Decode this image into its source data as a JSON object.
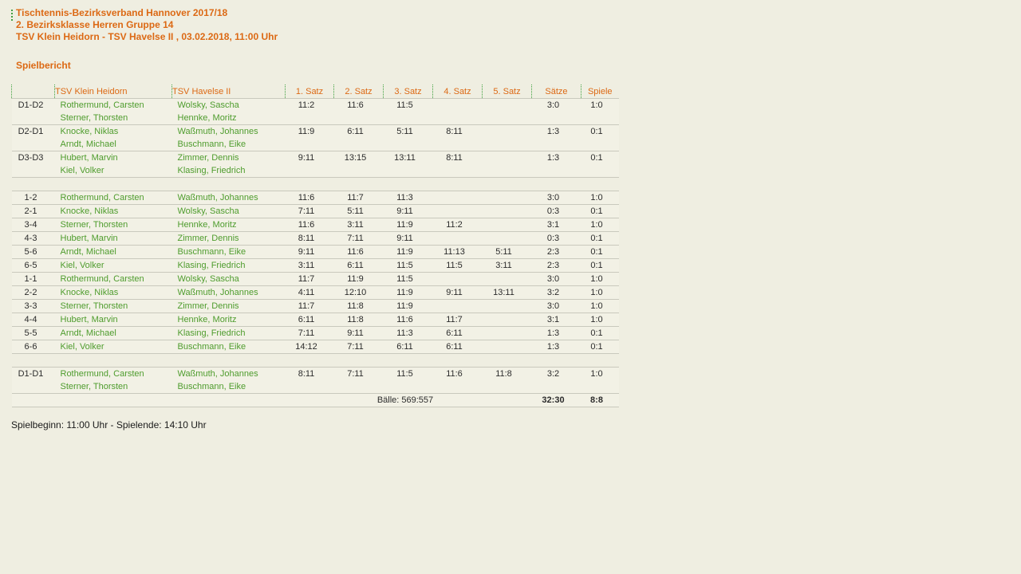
{
  "header": {
    "line1": "Tischtennis-Bezirksverband Hannover 2017/18",
    "line2": "2. Bezirksklasse Herren Gruppe 14",
    "line3": "TSV Klein Heidorn - TSV Havelse II , 03.02.2018, 11:00 Uhr",
    "section_title": "Spielbericht"
  },
  "colors": {
    "accent_orange": "#DC6914",
    "player_green": "#4E9C2D",
    "dotted_green": "#3FA03F",
    "page_bg": "#EFEEE1",
    "row_bg": "#F2F1E5",
    "separator_line": "#C9C9BD",
    "score_text": "#2B2B2B"
  },
  "table": {
    "headers": {
      "label": "",
      "home": "TSV Klein Heidorn",
      "away": "TSV Havelse II",
      "sets": [
        "1. Satz",
        "2. Satz",
        "3. Satz",
        "4. Satz",
        "5. Satz"
      ],
      "saetze": "Sätze",
      "spiele": "Spiele"
    },
    "rows": [
      {
        "type": "double",
        "label": "D1-D2",
        "home": [
          "Rothermund, Carsten",
          "Sterner, Thorsten"
        ],
        "away": [
          "Wolsky, Sascha",
          "Hennke, Moritz"
        ],
        "sets": [
          "11:2",
          "11:6",
          "11:5",
          "",
          ""
        ],
        "saetze": "3:0",
        "spiele": "1:0"
      },
      {
        "type": "double",
        "label": "D2-D1",
        "home": [
          "Knocke, Niklas",
          "Arndt, Michael"
        ],
        "away": [
          "Waßmuth, Johannes",
          "Buschmann, Eike"
        ],
        "sets": [
          "11:9",
          "6:11",
          "5:11",
          "8:11",
          ""
        ],
        "saetze": "1:3",
        "spiele": "0:1"
      },
      {
        "type": "double",
        "label": "D3-D3",
        "home": [
          "Hubert, Marvin",
          "Kiel, Volker"
        ],
        "away": [
          "Zimmer, Dennis",
          "Klasing, Friedrich"
        ],
        "sets": [
          "9:11",
          "13:15",
          "13:11",
          "8:11",
          ""
        ],
        "saetze": "1:3",
        "spiele": "0:1"
      },
      {
        "type": "spacer"
      },
      {
        "type": "single",
        "label": "1-2",
        "home": [
          "Rothermund, Carsten"
        ],
        "away": [
          "Waßmuth, Johannes"
        ],
        "sets": [
          "11:6",
          "11:7",
          "11:3",
          "",
          ""
        ],
        "saetze": "3:0",
        "spiele": "1:0"
      },
      {
        "type": "single",
        "label": "2-1",
        "home": [
          "Knocke, Niklas"
        ],
        "away": [
          "Wolsky, Sascha"
        ],
        "sets": [
          "7:11",
          "5:11",
          "9:11",
          "",
          ""
        ],
        "saetze": "0:3",
        "spiele": "0:1"
      },
      {
        "type": "single",
        "label": "3-4",
        "home": [
          "Sterner, Thorsten"
        ],
        "away": [
          "Hennke, Moritz"
        ],
        "sets": [
          "11:6",
          "3:11",
          "11:9",
          "11:2",
          ""
        ],
        "saetze": "3:1",
        "spiele": "1:0"
      },
      {
        "type": "single",
        "label": "4-3",
        "home": [
          "Hubert, Marvin"
        ],
        "away": [
          "Zimmer, Dennis"
        ],
        "sets": [
          "8:11",
          "7:11",
          "9:11",
          "",
          ""
        ],
        "saetze": "0:3",
        "spiele": "0:1"
      },
      {
        "type": "single",
        "label": "5-6",
        "home": [
          "Arndt, Michael"
        ],
        "away": [
          "Buschmann, Eike"
        ],
        "sets": [
          "9:11",
          "11:6",
          "11:9",
          "11:13",
          "5:11"
        ],
        "saetze": "2:3",
        "spiele": "0:1"
      },
      {
        "type": "single",
        "label": "6-5",
        "home": [
          "Kiel, Volker"
        ],
        "away": [
          "Klasing, Friedrich"
        ],
        "sets": [
          "3:11",
          "6:11",
          "11:5",
          "11:5",
          "3:11"
        ],
        "saetze": "2:3",
        "spiele": "0:1"
      },
      {
        "type": "single",
        "label": "1-1",
        "home": [
          "Rothermund, Carsten"
        ],
        "away": [
          "Wolsky, Sascha"
        ],
        "sets": [
          "11:7",
          "11:9",
          "11:5",
          "",
          ""
        ],
        "saetze": "3:0",
        "spiele": "1:0"
      },
      {
        "type": "single",
        "label": "2-2",
        "home": [
          "Knocke, Niklas"
        ],
        "away": [
          "Waßmuth, Johannes"
        ],
        "sets": [
          "4:11",
          "12:10",
          "11:9",
          "9:11",
          "13:11"
        ],
        "saetze": "3:2",
        "spiele": "1:0"
      },
      {
        "type": "single",
        "label": "3-3",
        "home": [
          "Sterner, Thorsten"
        ],
        "away": [
          "Zimmer, Dennis"
        ],
        "sets": [
          "11:7",
          "11:8",
          "11:9",
          "",
          ""
        ],
        "saetze": "3:0",
        "spiele": "1:0"
      },
      {
        "type": "single",
        "label": "4-4",
        "home": [
          "Hubert, Marvin"
        ],
        "away": [
          "Hennke, Moritz"
        ],
        "sets": [
          "6:11",
          "11:8",
          "11:6",
          "11:7",
          ""
        ],
        "saetze": "3:1",
        "spiele": "1:0"
      },
      {
        "type": "single",
        "label": "5-5",
        "home": [
          "Arndt, Michael"
        ],
        "away": [
          "Klasing, Friedrich"
        ],
        "sets": [
          "7:11",
          "9:11",
          "11:3",
          "6:11",
          ""
        ],
        "saetze": "1:3",
        "spiele": "0:1"
      },
      {
        "type": "single",
        "label": "6-6",
        "home": [
          "Kiel, Volker"
        ],
        "away": [
          "Buschmann, Eike"
        ],
        "sets": [
          "14:12",
          "7:11",
          "6:11",
          "6:11",
          ""
        ],
        "saetze": "1:3",
        "spiele": "0:1"
      },
      {
        "type": "spacer"
      },
      {
        "type": "double",
        "label": "D1-D1",
        "home": [
          "Rothermund, Carsten",
          "Sterner, Thorsten"
        ],
        "away": [
          "Waßmuth, Johannes",
          "Buschmann, Eike"
        ],
        "sets": [
          "8:11",
          "7:11",
          "11:5",
          "11:6",
          "11:8"
        ],
        "saetze": "3:2",
        "spiele": "1:0"
      }
    ],
    "totals": {
      "balls_label": "Bälle: 569:557",
      "saetze": "32:30",
      "spiele": "8:8"
    }
  },
  "footer": {
    "times": "Spielbeginn: 11:00 Uhr - Spielende: 14:10 Uhr"
  }
}
